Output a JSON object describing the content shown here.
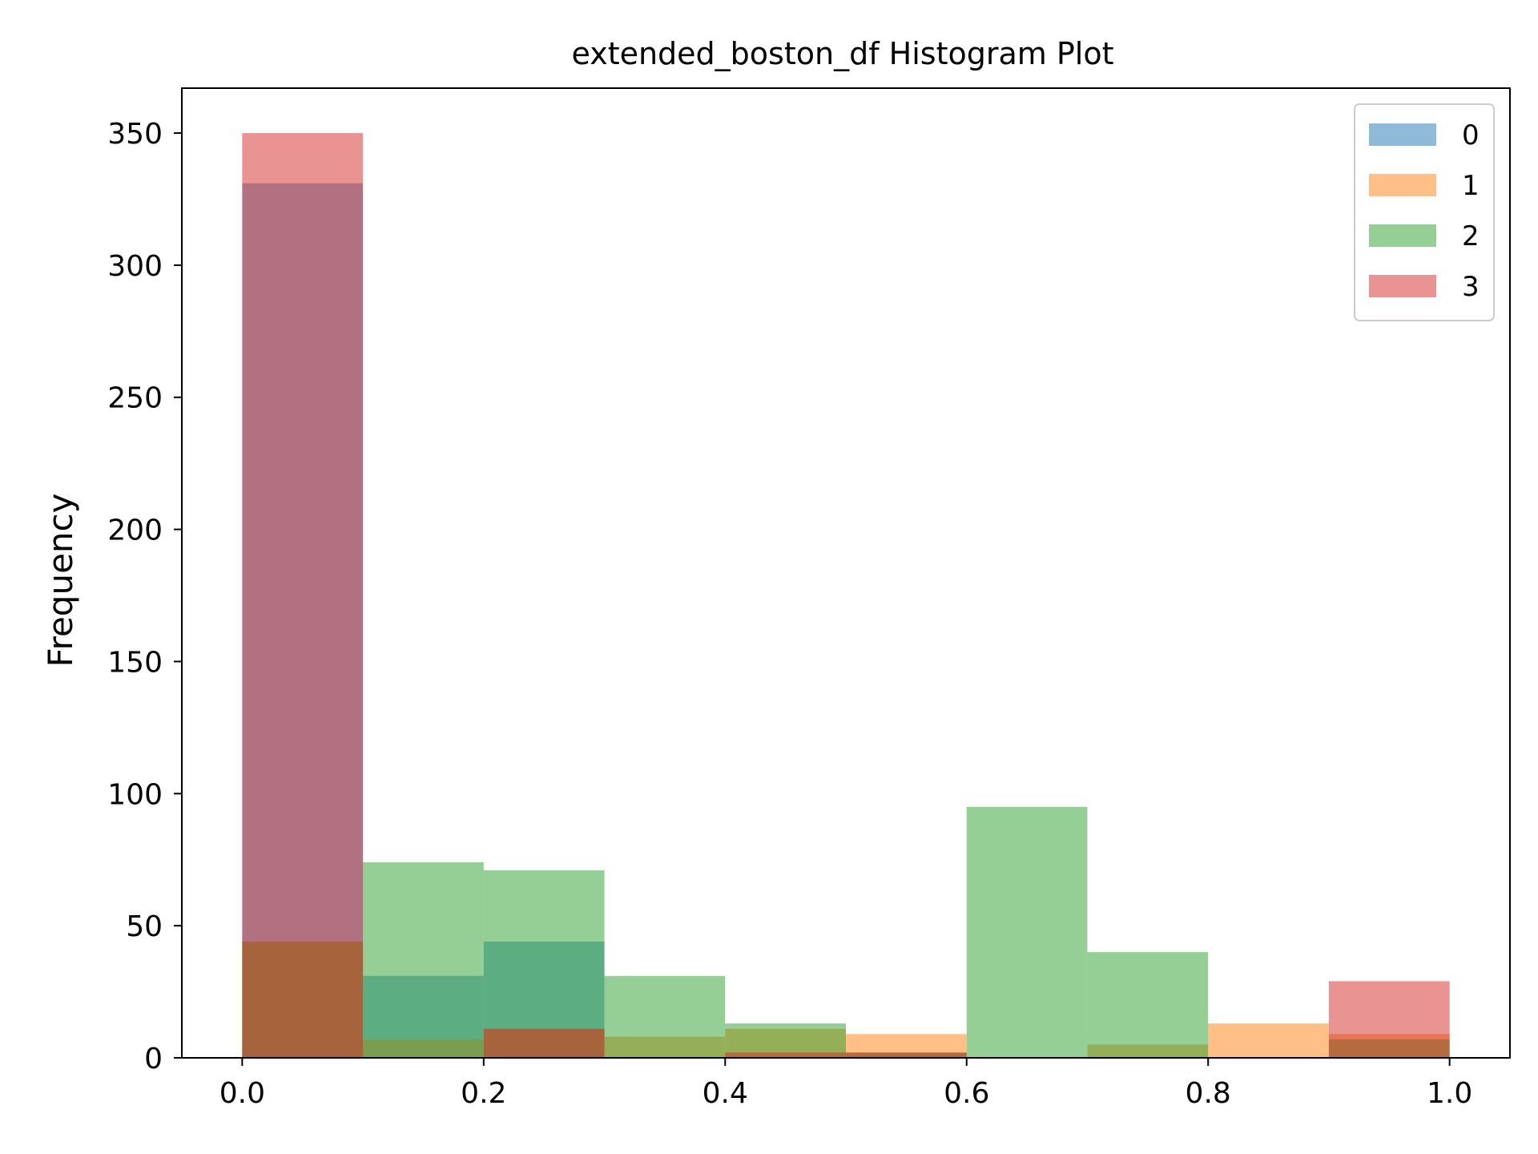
{
  "chart_data": {
    "type": "bar",
    "title": "extended_boston_df Histogram Plot",
    "xlabel": "",
    "ylabel": "Frequency",
    "xlim": [
      -0.05,
      1.05
    ],
    "ylim": [
      0,
      367
    ],
    "xticks": [
      0.0,
      0.2,
      0.4,
      0.6,
      0.8,
      1.0
    ],
    "xtick_labels": [
      "0.0",
      "0.2",
      "0.4",
      "0.6",
      "0.8",
      "1.0"
    ],
    "yticks": [
      0,
      50,
      100,
      150,
      200,
      250,
      300,
      350
    ],
    "ytick_labels": [
      "0",
      "50",
      "100",
      "150",
      "200",
      "250",
      "300",
      "350"
    ],
    "grid": false,
    "legend": "top-right",
    "bin_edges": [
      0.0,
      0.1,
      0.2,
      0.3,
      0.4,
      0.5,
      0.6,
      0.7,
      0.8,
      0.9,
      1.0
    ],
    "bar_alpha": 0.5,
    "series": [
      {
        "name": "0",
        "color": "#1f77b4",
        "values": [
          331,
          31,
          44,
          0,
          0,
          0,
          0,
          0,
          0,
          0
        ]
      },
      {
        "name": "1",
        "color": "#ff7f0e",
        "values": [
          44,
          7,
          11,
          8,
          11,
          9,
          0,
          5,
          13,
          9
        ]
      },
      {
        "name": "2",
        "color": "#2ca02c",
        "values": [
          44,
          74,
          71,
          31,
          13,
          2,
          95,
          40,
          0,
          7
        ]
      },
      {
        "name": "3",
        "color": "#d62728",
        "values": [
          350,
          0,
          11,
          0,
          2,
          2,
          0,
          0,
          0,
          29
        ]
      }
    ]
  }
}
